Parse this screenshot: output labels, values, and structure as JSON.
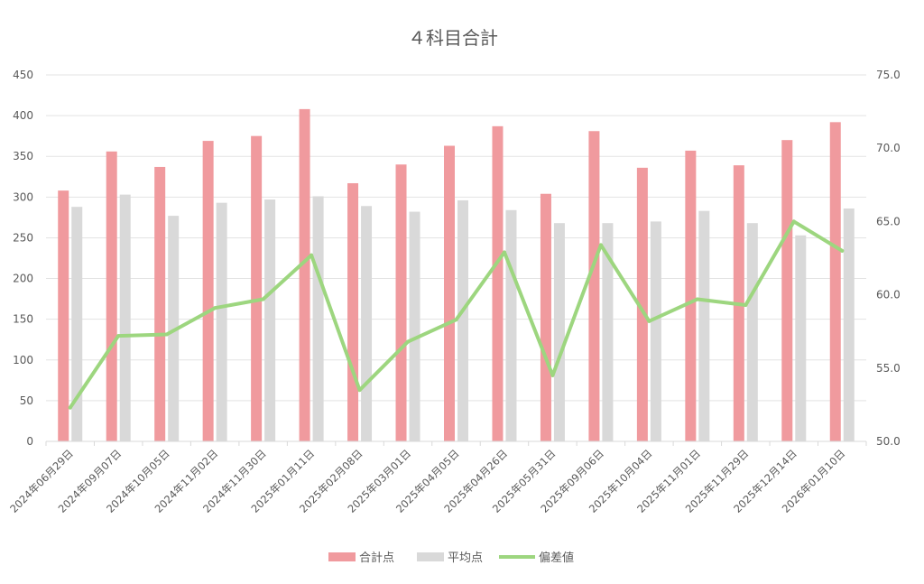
{
  "chart_data": {
    "type": "bar",
    "title": "４科目合計",
    "categories": [
      "2024年06月29日",
      "2024年09月07日",
      "2024年10月05日",
      "2024年11月02日",
      "2024年11月30日",
      "2025年01月11日",
      "2025年02月08日",
      "2025年03月01日",
      "2025年04月05日",
      "2025年04月26日",
      "2025年05月31日",
      "2025年09月06日",
      "2025年10月04日",
      "2025年11月01日",
      "2025年11月29日",
      "2025年12月14日",
      "2026年01月10日"
    ],
    "series": [
      {
        "name": "合計点",
        "type": "bar",
        "axis": "left",
        "color": "#f09a9e",
        "values": [
          308,
          356,
          337,
          369,
          375,
          408,
          317,
          340,
          363,
          387,
          304,
          381,
          336,
          357,
          339,
          370,
          392
        ]
      },
      {
        "name": "平均点",
        "type": "bar",
        "axis": "left",
        "color": "#d9d9d9",
        "values": [
          288,
          303,
          277,
          293,
          297,
          301,
          289,
          282,
          296,
          284,
          268,
          268,
          270,
          283,
          268,
          253,
          286
        ]
      },
      {
        "name": "偏差値",
        "type": "line",
        "axis": "right",
        "color": "#9dd67f",
        "values": [
          52.3,
          57.2,
          57.3,
          59.1,
          59.7,
          62.7,
          53.5,
          56.8,
          58.3,
          62.9,
          54.5,
          63.4,
          58.2,
          59.7,
          59.3,
          65.0,
          63.0
        ]
      }
    ],
    "yleft": {
      "min": 0,
      "max": 450,
      "step": 50,
      "ticks": [
        "0",
        "50",
        "100",
        "150",
        "200",
        "250",
        "300",
        "350",
        "400",
        "450"
      ]
    },
    "yright": {
      "min": 50,
      "max": 75,
      "step": 5,
      "ticks": [
        "50.0",
        "55.0",
        "60.0",
        "65.0",
        "70.0",
        "75.0"
      ]
    },
    "grid": true,
    "legend": "bottom"
  }
}
